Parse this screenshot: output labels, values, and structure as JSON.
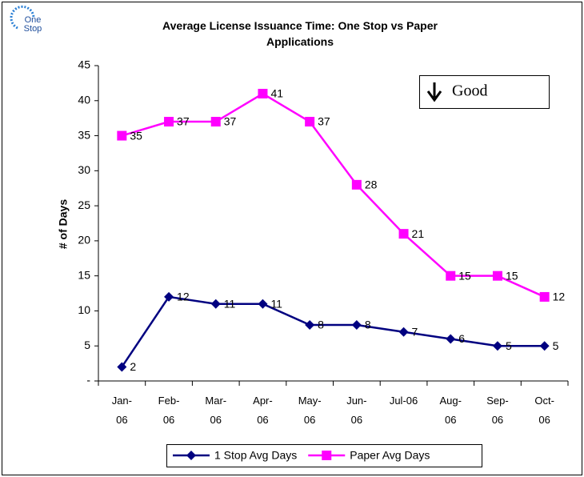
{
  "chart_data": {
    "type": "line",
    "logo": "One Stop",
    "title": "Average License Issuance Time: One Stop vs Paper Applications",
    "y_label": "# of Days",
    "annotation": "Good",
    "categories": [
      "Jan-06",
      "Feb-06",
      "Mar-06",
      "Apr-06",
      "May-06",
      "Jun-06",
      "Jul-06",
      "Aug-06",
      "Sep-06",
      "Oct-06"
    ],
    "series": [
      {
        "name": "1 Stop Avg Days",
        "color": "#000080",
        "marker": "diamond",
        "values": [
          2,
          12,
          11,
          11,
          8,
          8,
          7,
          6,
          5,
          5
        ]
      },
      {
        "name": "Paper Avg Days",
        "color": "#ff00ff",
        "marker": "square",
        "values": [
          35,
          37,
          37,
          41,
          37,
          28,
          21,
          15,
          15,
          12
        ]
      }
    ],
    "ylim": [
      0,
      45
    ],
    "yticks": [
      {
        "value": 0,
        "label": "-"
      },
      5,
      10,
      15,
      20,
      25,
      30,
      35,
      40,
      45
    ],
    "grid": false,
    "legend": "bottom"
  }
}
